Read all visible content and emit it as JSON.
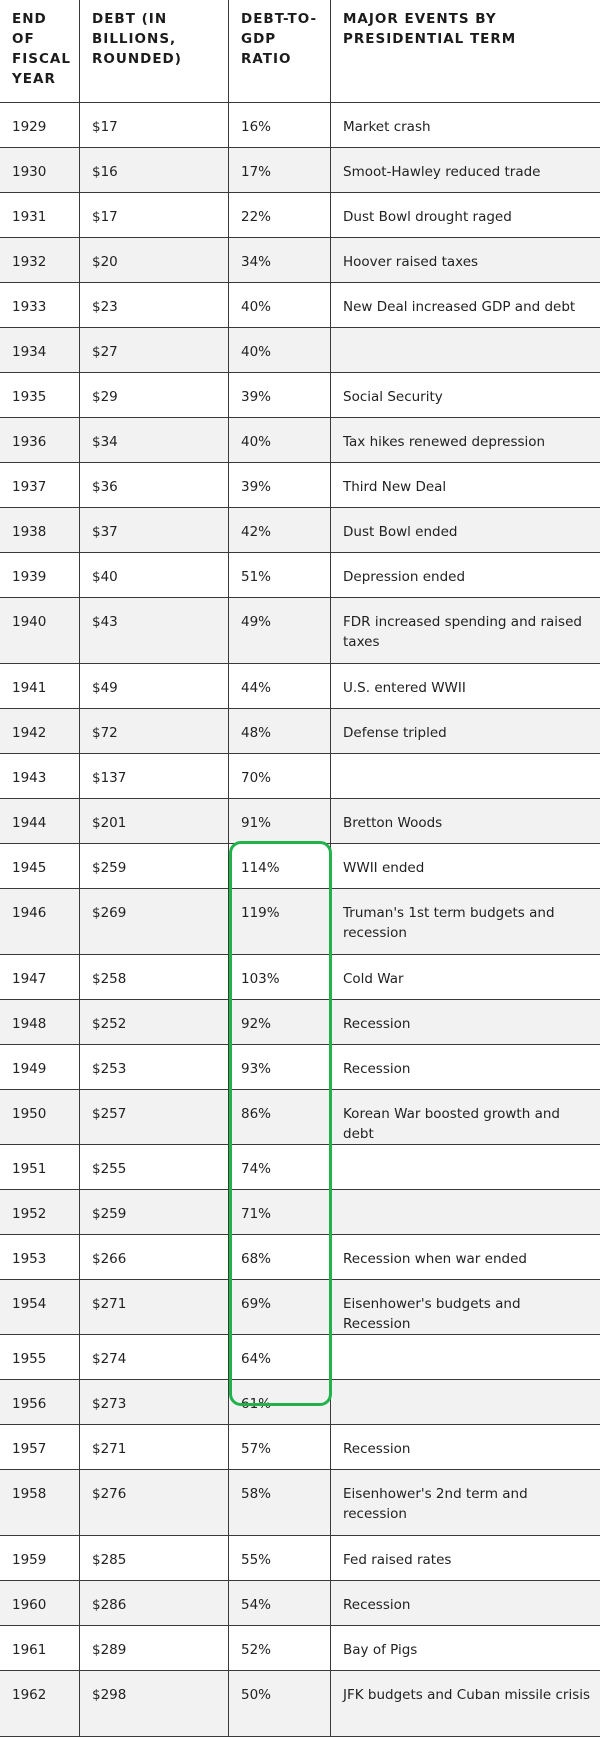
{
  "columns": [
    "END OF FISCAL YEAR",
    "DEBT (IN BILLIONS, ROUNDED)",
    "DEBT-TO-GDP RATIO",
    "MAJOR EVENTS BY PRESIDENTIAL TERM"
  ],
  "rows": [
    {
      "year": "1929",
      "debt": "$17",
      "ratio": "16%",
      "event": "Market crash"
    },
    {
      "year": "1930",
      "debt": "$16",
      "ratio": "17%",
      "event": "Smoot-Hawley reduced trade"
    },
    {
      "year": "1931",
      "debt": "$17",
      "ratio": "22%",
      "event": "Dust Bowl drought raged"
    },
    {
      "year": "1932",
      "debt": "$20",
      "ratio": "34%",
      "event": "Hoover raised taxes"
    },
    {
      "year": "1933",
      "debt": "$23",
      "ratio": "40%",
      "event": "New Deal increased GDP and debt"
    },
    {
      "year": "1934",
      "debt": "$27",
      "ratio": "40%",
      "event": ""
    },
    {
      "year": "1935",
      "debt": "$29",
      "ratio": "39%",
      "event": "Social Security"
    },
    {
      "year": "1936",
      "debt": "$34",
      "ratio": "40%",
      "event": "Tax hikes renewed depression"
    },
    {
      "year": "1937",
      "debt": "$36",
      "ratio": "39%",
      "event": "Third New Deal"
    },
    {
      "year": "1938",
      "debt": "$37",
      "ratio": "42%",
      "event": "Dust Bowl ended"
    },
    {
      "year": "1939",
      "debt": "$40",
      "ratio": "51%",
      "event": "Depression ended"
    },
    {
      "year": "1940",
      "debt": "$43",
      "ratio": "49%",
      "event": "FDR increased spending and raised taxes"
    },
    {
      "year": "1941",
      "debt": "$49",
      "ratio": "44%",
      "event": "U.S. entered WWII"
    },
    {
      "year": "1942",
      "debt": "$72",
      "ratio": "48%",
      "event": "Defense tripled"
    },
    {
      "year": "1943",
      "debt": "$137",
      "ratio": "70%",
      "event": ""
    },
    {
      "year": "1944",
      "debt": "$201",
      "ratio": "91%",
      "event": "Bretton Woods"
    },
    {
      "year": "1945",
      "debt": "$259",
      "ratio": "114%",
      "event": "WWII ended"
    },
    {
      "year": "1946",
      "debt": "$269",
      "ratio": "119%",
      "event": "Truman's 1st term budgets and recession"
    },
    {
      "year": "1947",
      "debt": "$258",
      "ratio": "103%",
      "event": "Cold War"
    },
    {
      "year": "1948",
      "debt": "$252",
      "ratio": "92%",
      "event": "Recession"
    },
    {
      "year": "1949",
      "debt": "$253",
      "ratio": "93%",
      "event": "Recession"
    },
    {
      "year": "1950",
      "debt": "$257",
      "ratio": "86%",
      "event": "Korean War boosted growth and debt"
    },
    {
      "year": "1951",
      "debt": "$255",
      "ratio": "74%",
      "event": ""
    },
    {
      "year": "1952",
      "debt": "$259",
      "ratio": "71%",
      "event": ""
    },
    {
      "year": "1953",
      "debt": "$266",
      "ratio": "68%",
      "event": "Recession when war ended"
    },
    {
      "year": "1954",
      "debt": "$271",
      "ratio": "69%",
      "event": "Eisenhower's budgets and Recession"
    },
    {
      "year": "1955",
      "debt": "$274",
      "ratio": "64%",
      "event": ""
    },
    {
      "year": "1956",
      "debt": "$273",
      "ratio": "61%",
      "event": ""
    },
    {
      "year": "1957",
      "debt": "$271",
      "ratio": "57%",
      "event": "Recession"
    },
    {
      "year": "1958",
      "debt": "$276",
      "ratio": "58%",
      "event": "Eisenhower's 2nd term and recession"
    },
    {
      "year": "1959",
      "debt": "$285",
      "ratio": "55%",
      "event": "Fed raised rates"
    },
    {
      "year": "1960",
      "debt": "$286",
      "ratio": "54%",
      "event": "Recession"
    },
    {
      "year": "1961",
      "debt": "$289",
      "ratio": "52%",
      "event": "Bay of Pigs"
    },
    {
      "year": "1962",
      "debt": "$298",
      "ratio": "50%",
      "event": "JFK budgets and Cuban missile crisis"
    }
  ],
  "highlight": {
    "color": "#21b24b"
  }
}
